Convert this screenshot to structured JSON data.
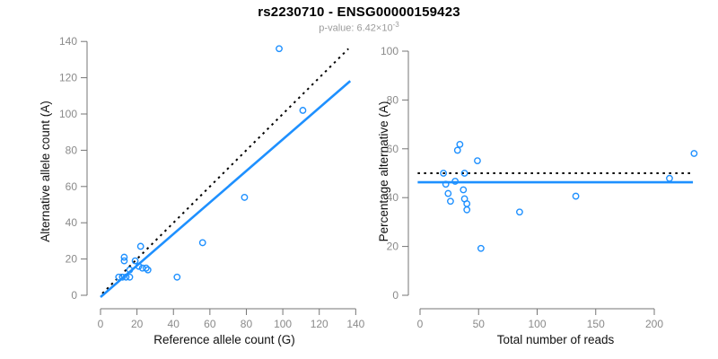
{
  "header": {
    "title": "rs2230710 - ENSG00000159423",
    "subtitle_prefix": "p-value: 6.42×10",
    "subtitle_exponent": "-3"
  },
  "colors": {
    "point_blue": "#1E90FF",
    "fit_line_blue": "#1E90FF",
    "dotted_line_black": "#000000",
    "tick_label_gray": "#8a8a8a",
    "axis_gray": "#757575",
    "subtitle_gray": "#9b9b9b"
  },
  "chart_data": [
    {
      "type": "scatter",
      "panel": "left",
      "xlabel": "Reference allele count (G)",
      "ylabel": "Alternative allele count (A)",
      "xlim": [
        0,
        145
      ],
      "ylim": [
        0,
        140
      ],
      "xticks": [
        0,
        20,
        40,
        60,
        80,
        100,
        120,
        140
      ],
      "yticks": [
        0,
        20,
        40,
        60,
        80,
        100,
        120,
        140
      ],
      "grid": false,
      "points": [
        [
          10,
          10
        ],
        [
          12,
          10
        ],
        [
          14,
          10
        ],
        [
          16,
          10
        ],
        [
          16,
          14
        ],
        [
          13,
          19
        ],
        [
          13,
          21
        ],
        [
          19,
          19
        ],
        [
          21,
          16
        ],
        [
          23,
          15
        ],
        [
          25,
          15
        ],
        [
          26,
          14
        ],
        [
          22,
          27
        ],
        [
          42,
          10
        ],
        [
          56,
          29
        ],
        [
          79,
          54
        ],
        [
          98,
          136
        ],
        [
          111,
          102
        ]
      ],
      "lines": [
        {
          "name": "identity-line",
          "style": "dotted",
          "color": "#000000",
          "slope": 1,
          "intercept": 0,
          "x_range": [
            1,
            136
          ]
        },
        {
          "name": "fit-line",
          "style": "solid",
          "color": "#1E90FF",
          "slope": 0.87,
          "intercept": -1,
          "x_range": [
            0,
            137
          ]
        }
      ]
    },
    {
      "type": "scatter",
      "panel": "right",
      "xlabel": "Total number of reads",
      "ylabel": "Percentage alternative (A)",
      "xlim": [
        0,
        235
      ],
      "ylim": [
        0,
        100
      ],
      "xticks": [
        0,
        50,
        100,
        150,
        200
      ],
      "yticks": [
        0,
        20,
        40,
        60,
        80,
        100
      ],
      "grid": false,
      "points": [
        [
          20,
          50
        ],
        [
          22,
          45.5
        ],
        [
          24,
          41.7
        ],
        [
          26,
          38.5
        ],
        [
          30,
          46.7
        ],
        [
          32,
          59.4
        ],
        [
          34,
          61.8
        ],
        [
          38,
          50
        ],
        [
          37,
          43.2
        ],
        [
          38,
          39.5
        ],
        [
          40,
          37.5
        ],
        [
          40,
          35
        ],
        [
          49,
          55.1
        ],
        [
          52,
          19.2
        ],
        [
          85,
          34.1
        ],
        [
          133,
          40.6
        ],
        [
          213,
          47.9
        ],
        [
          234,
          58.1
        ]
      ],
      "lines": [
        {
          "name": "expected-50pct-line",
          "style": "dotted",
          "color": "#000000",
          "slope": 0,
          "intercept": 50,
          "x_range": [
            -2,
            233
          ]
        },
        {
          "name": "mean-percentage-line",
          "style": "solid",
          "color": "#1E90FF",
          "slope": 0,
          "intercept": 46.3,
          "x_range": [
            -2,
            233
          ]
        }
      ]
    }
  ]
}
